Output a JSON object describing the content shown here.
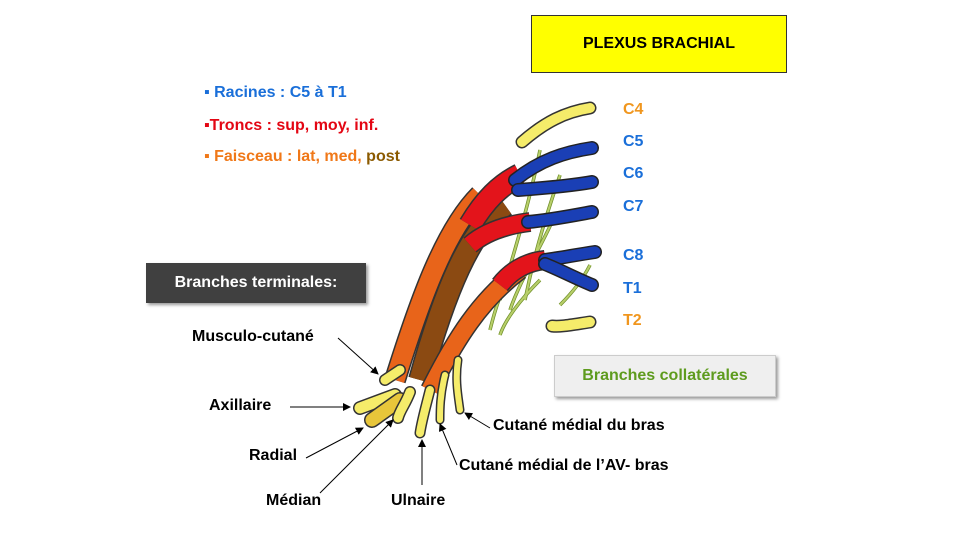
{
  "title": "PLEXUS BRACHIAL",
  "legend": {
    "roots": "▪ Racines : C5 à T1",
    "trunks": "▪Troncs : sup, moy, inf.",
    "cords_main": "▪ Faisceau : lat, med, ",
    "cords_post": "post"
  },
  "boxes": {
    "terminal": "Branches terminales:",
    "collateral": "Branches collatérales"
  },
  "roots": [
    {
      "label": "C4",
      "color": "#f0961e"
    },
    {
      "label": "C5",
      "color": "#1a6fd9"
    },
    {
      "label": "C6",
      "color": "#1a6fd9"
    },
    {
      "label": "C7",
      "color": "#1a6fd9"
    },
    {
      "label": "C8",
      "color": "#1a6fd9"
    },
    {
      "label": "T1",
      "color": "#1a6fd9"
    },
    {
      "label": "T2",
      "color": "#f0961e"
    }
  ],
  "terminal_labels": {
    "musculocutaneous": "Musculo-cutané",
    "axillary": "Axillaire",
    "radial": "Radial",
    "median": "Médian",
    "ulnar": "Ulnaire",
    "medial_cutaneous_arm": "Cutané médial du bras",
    "medial_cutaneous_forearm": "Cutané médial de l’AV- bras"
  },
  "colors": {
    "root_blue": "#1a3fb5",
    "trunk_red": "#e3141b",
    "cord_orange": "#e8641a",
    "cord_brown": "#8b4a12",
    "terminal_yellow": "#f5ec6a",
    "collateral_green": "#9ab54a"
  }
}
